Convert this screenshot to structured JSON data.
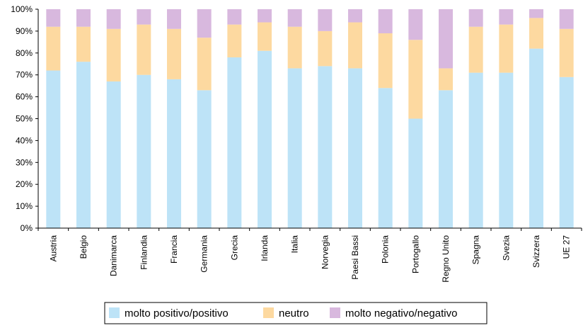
{
  "chart_data": {
    "type": "bar",
    "stacked": true,
    "percent": true,
    "categories": [
      "Austria",
      "Belgio",
      "Danimarca",
      "Finlandia",
      "Francia",
      "Germania",
      "Grecia",
      "Irlanda",
      "Italia",
      "Norvegia",
      "Paesi Bassi",
      "Polonia",
      "Portogallo",
      "Regno Unito",
      "Spagna",
      "Svezia",
      "Svizzera",
      "UE 27"
    ],
    "series": [
      {
        "name": "molto positivo/positivo",
        "color": "#bde3f7",
        "values": [
          72,
          76,
          67,
          70,
          68,
          63,
          78,
          81,
          73,
          74,
          73,
          64,
          50,
          63,
          71,
          71,
          82,
          69
        ]
      },
      {
        "name": "neutro",
        "color": "#fdd9a0",
        "values": [
          20,
          16,
          24,
          23,
          23,
          24,
          15,
          13,
          19,
          16,
          21,
          25,
          36,
          10,
          21,
          22,
          14,
          22
        ]
      },
      {
        "name": "molto negativo/negativo",
        "color": "#d8b8de",
        "values": [
          8,
          8,
          9,
          7,
          9,
          13,
          7,
          6,
          8,
          10,
          6,
          11,
          14,
          27,
          8,
          7,
          4,
          9
        ]
      }
    ],
    "yticks": [
      "0%",
      "10%",
      "20%",
      "30%",
      "40%",
      "50%",
      "60%",
      "70%",
      "80%",
      "90%",
      "100%"
    ],
    "ylim": [
      0,
      100
    ],
    "grid": false,
    "legend": "bottom"
  }
}
